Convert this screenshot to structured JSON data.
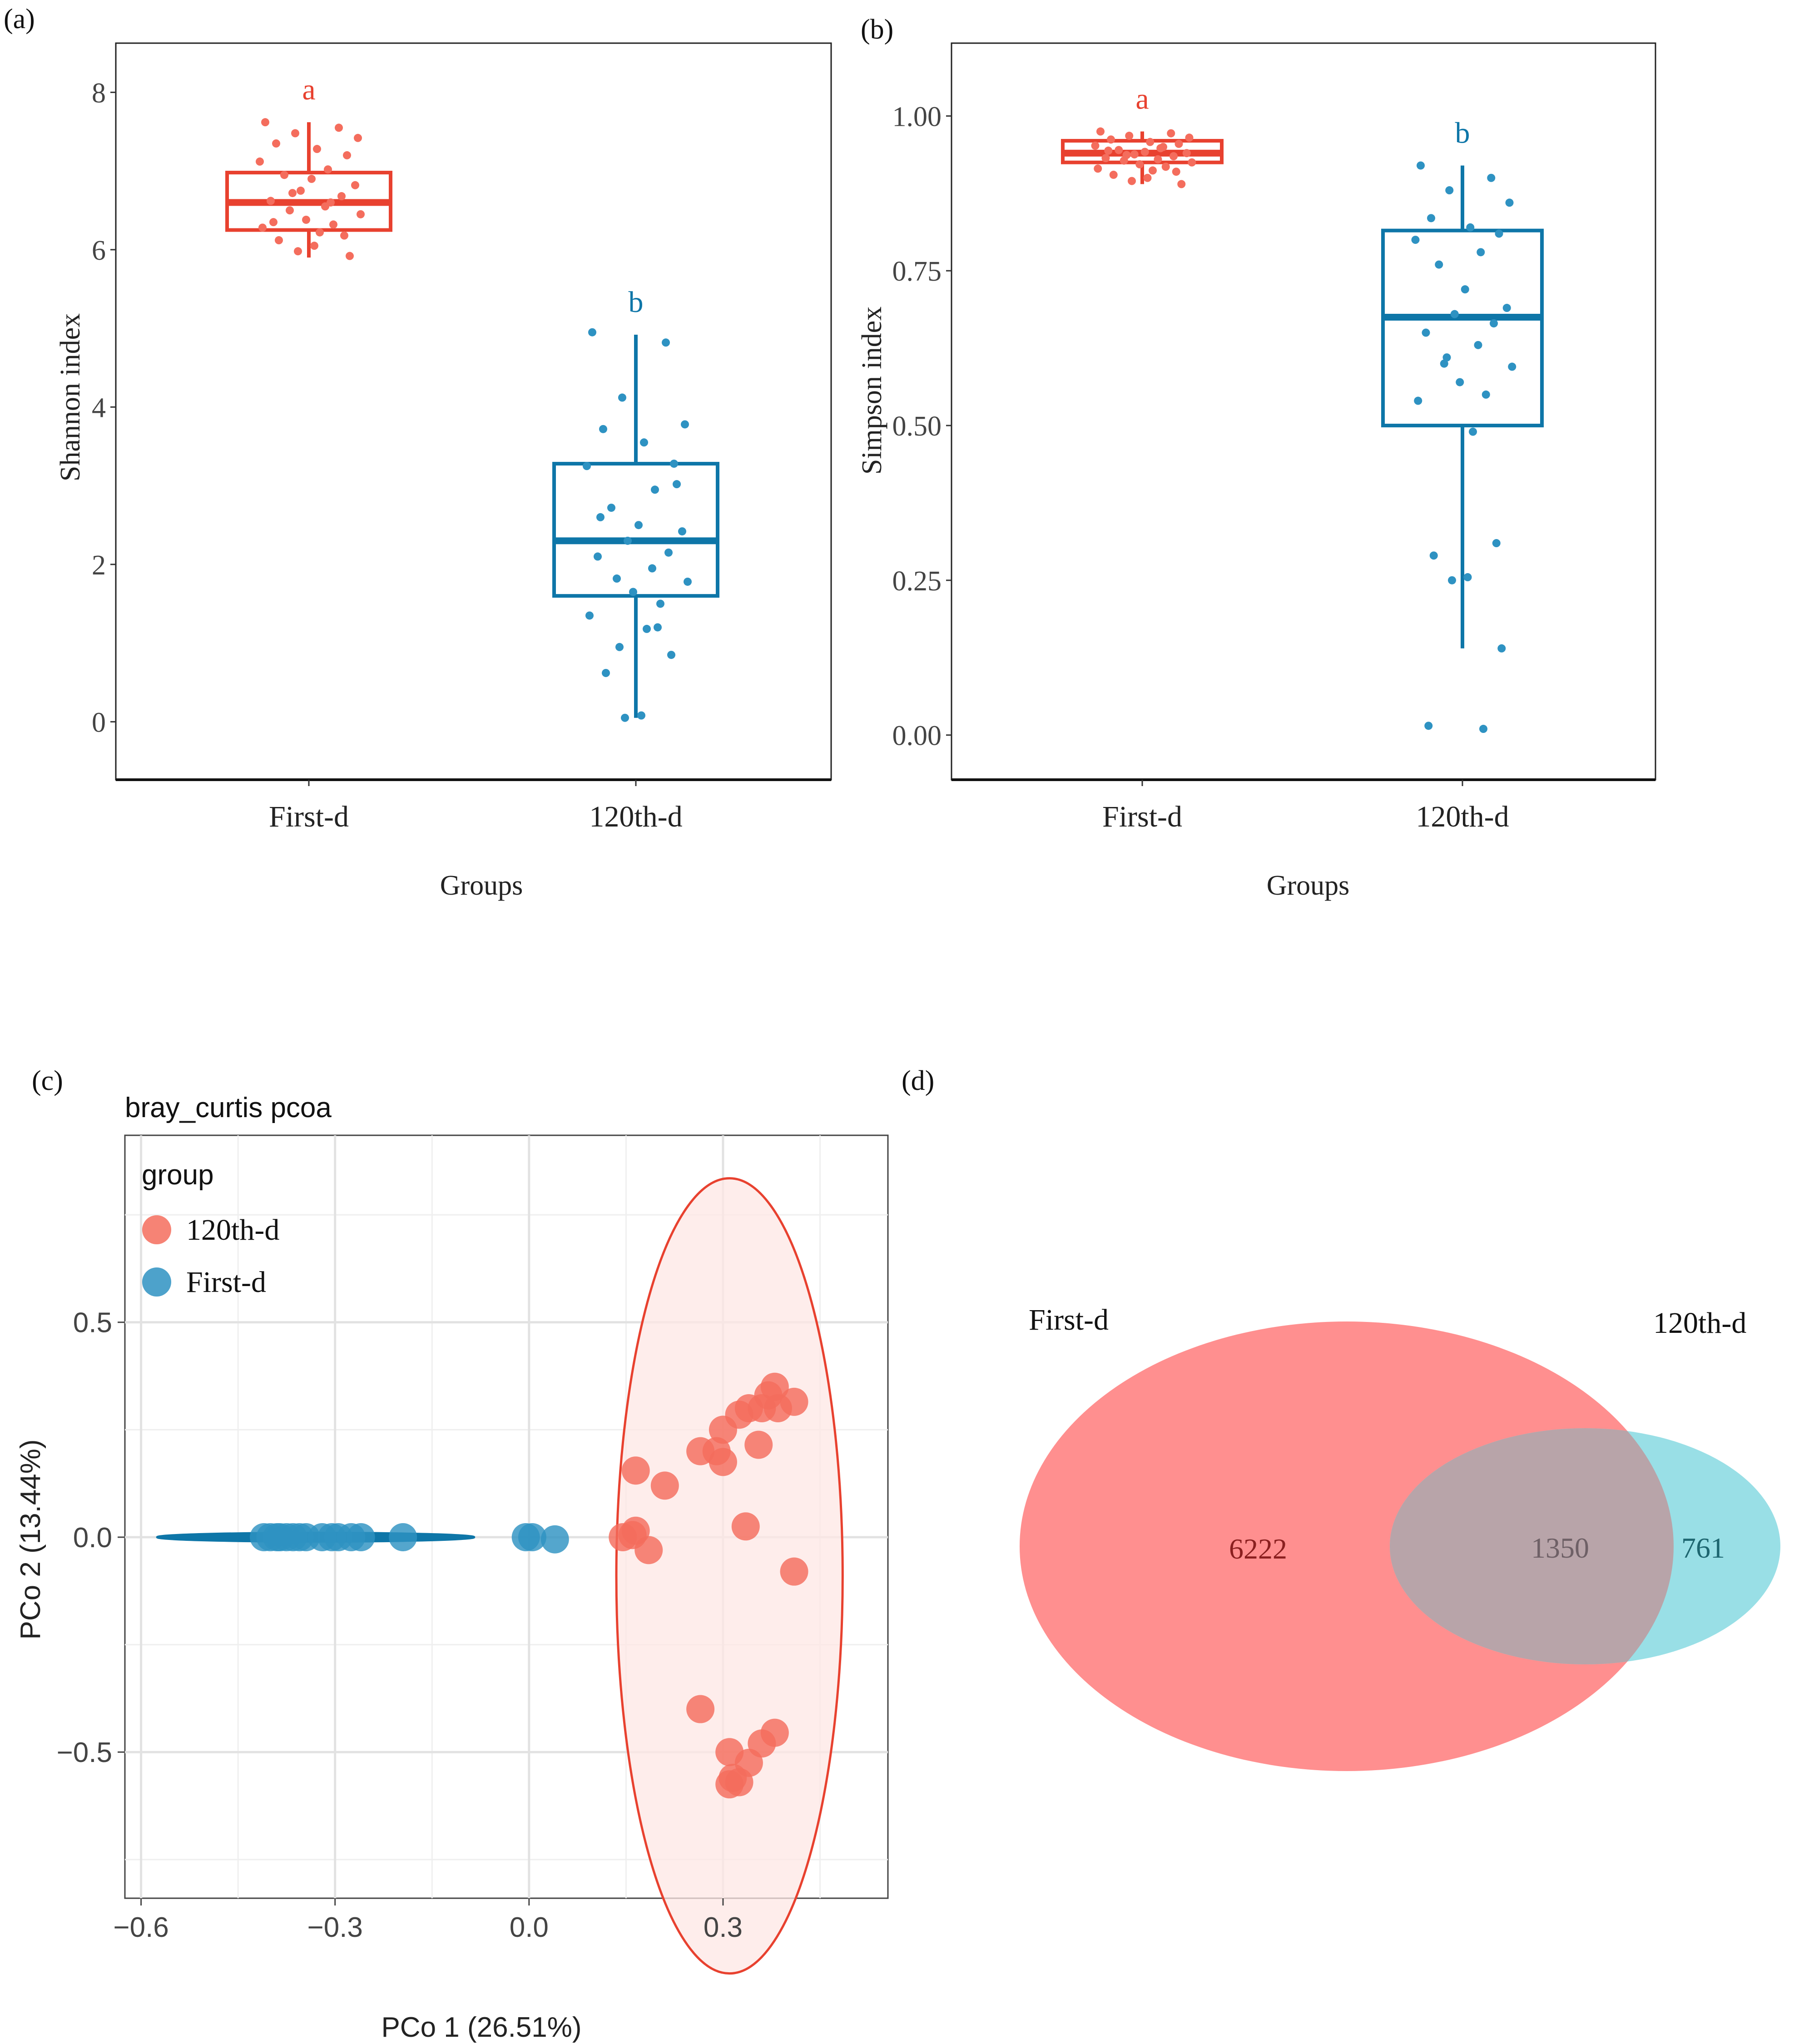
{
  "colors": {
    "red": "#E8412F",
    "red_point": "#F46D5D",
    "blue": "#0E76A8",
    "blue_point": "#2E92C2",
    "venn_red": "#FF7B7B",
    "venn_cyan": "#99DFE6",
    "venn_overlap": "#B8A4A9"
  },
  "chart_data": [
    {
      "id": "a",
      "panel_label": "(a)",
      "type": "box",
      "title": "",
      "xlabel": "Groups",
      "ylabel": "Shannon index",
      "categories": [
        "First-d",
        "120th-d"
      ],
      "ylim": [
        -0.35,
        8.25
      ],
      "yticks": [
        {
          "value": 0,
          "label": "0"
        },
        {
          "value": 2,
          "label": "2"
        },
        {
          "value": 4,
          "label": "4"
        },
        {
          "value": 6,
          "label": "6"
        },
        {
          "value": 8,
          "label": "8"
        }
      ],
      "boxes": [
        {
          "group": "First-d",
          "letter": "a",
          "whisker_low": 5.9,
          "q1": 6.25,
          "median": 6.6,
          "q3": 6.98,
          "whisker_high": 7.62,
          "points": [
            7.62,
            7.55,
            7.48,
            7.42,
            7.35,
            7.28,
            7.2,
            7.12,
            7.02,
            6.95,
            6.9,
            6.82,
            6.75,
            6.68,
            6.62,
            6.55,
            6.5,
            6.45,
            6.38,
            6.32,
            6.28,
            6.22,
            6.18,
            6.12,
            6.05,
            5.98,
            5.92,
            6.35,
            6.6,
            6.72
          ]
        },
        {
          "group": "120th-d",
          "letter": "b",
          "whisker_low": 0.05,
          "q1": 1.6,
          "median": 2.3,
          "q3": 3.28,
          "whisker_high": 4.92,
          "points": [
            4.95,
            4.82,
            4.12,
            3.78,
            3.72,
            3.55,
            3.28,
            3.25,
            2.95,
            2.72,
            2.5,
            2.42,
            2.3,
            2.15,
            2.1,
            1.95,
            1.82,
            1.78,
            1.65,
            1.5,
            1.35,
            1.18,
            0.85,
            0.62,
            0.08,
            0.05,
            3.02,
            2.6,
            1.2,
            0.95
          ]
        }
      ]
    },
    {
      "id": "b",
      "panel_label": "(b)",
      "type": "box",
      "title": "",
      "xlabel": "Groups",
      "ylabel": "Simpson index",
      "categories": [
        "First-d",
        "120th-d"
      ],
      "ylim": [
        -0.045,
        1.07
      ],
      "yticks": [
        {
          "value": 0,
          "label": "0.00"
        },
        {
          "value": 0.25,
          "label": "0.25"
        },
        {
          "value": 0.5,
          "label": "0.50"
        },
        {
          "value": 0.75,
          "label": "0.75"
        },
        {
          "value": 1.0,
          "label": "1.00"
        }
      ],
      "boxes": [
        {
          "group": "First-d",
          "letter": "a",
          "whisker_low": 0.89,
          "q1": 0.925,
          "median": 0.94,
          "q3": 0.96,
          "whisker_high": 0.975,
          "points": [
            0.975,
            0.972,
            0.968,
            0.965,
            0.962,
            0.958,
            0.955,
            0.952,
            0.948,
            0.945,
            0.942,
            0.94,
            0.938,
            0.935,
            0.932,
            0.93,
            0.928,
            0.925,
            0.922,
            0.918,
            0.915,
            0.912,
            0.91,
            0.905,
            0.9,
            0.895,
            0.89,
            0.944,
            0.95,
            0.937
          ]
        },
        {
          "group": "120th-d",
          "letter": "b",
          "whisker_low": 0.14,
          "q1": 0.5,
          "median": 0.675,
          "q3": 0.815,
          "whisker_high": 0.92,
          "points": [
            0.92,
            0.9,
            0.88,
            0.86,
            0.835,
            0.82,
            0.81,
            0.8,
            0.78,
            0.76,
            0.72,
            0.69,
            0.68,
            0.665,
            0.65,
            0.63,
            0.6,
            0.595,
            0.57,
            0.55,
            0.54,
            0.49,
            0.31,
            0.29,
            0.255,
            0.25,
            0.14,
            0.015,
            0.01,
            0.61
          ]
        }
      ]
    },
    {
      "id": "c",
      "panel_label": "(c)",
      "type": "scatter",
      "title": "bray_curtis pcoa",
      "xlabel": "PCo 1 (26.51%)",
      "ylabel": "PCo 2 (13.44%)",
      "xlim": [
        -0.625,
        0.555
      ],
      "ylim": [
        -0.84,
        0.935
      ],
      "xticks": [
        {
          "value": -0.6,
          "label": "−0.6"
        },
        {
          "value": -0.3,
          "label": "−0.3"
        },
        {
          "value": 0.0,
          "label": "0.0"
        },
        {
          "value": 0.3,
          "label": "0.3"
        }
      ],
      "yticks": [
        {
          "value": -0.5,
          "label": "−0.5"
        },
        {
          "value": 0.0,
          "label": "0.0"
        },
        {
          "value": 0.5,
          "label": "0.5"
        }
      ],
      "legend": {
        "title": "group",
        "position": "top-left",
        "entries": [
          {
            "label": "120th-d",
            "color_key": "red_point"
          },
          {
            "label": "First-d",
            "color_key": "blue_point"
          }
        ]
      },
      "series": [
        {
          "name": "120th-d",
          "color_key": "red_point",
          "points": [
            [
              0.38,
              0.35
            ],
            [
              0.37,
              0.33
            ],
            [
              0.36,
              0.3
            ],
            [
              0.385,
              0.3
            ],
            [
              0.41,
              0.315
            ],
            [
              0.34,
              0.3
            ],
            [
              0.325,
              0.285
            ],
            [
              0.3,
              0.25
            ],
            [
              0.29,
              0.2
            ],
            [
              0.355,
              0.215
            ],
            [
              0.265,
              0.2
            ],
            [
              0.3,
              0.175
            ],
            [
              0.165,
              0.155
            ],
            [
              0.21,
              0.12
            ],
            [
              0.335,
              0.025
            ],
            [
              0.165,
              0.015
            ],
            [
              0.16,
              0.005
            ],
            [
              0.145,
              0.0
            ],
            [
              0.185,
              -0.03
            ],
            [
              0.41,
              -0.08
            ],
            [
              0.265,
              -0.4
            ],
            [
              0.38,
              -0.455
            ],
            [
              0.36,
              -0.48
            ],
            [
              0.31,
              -0.5
            ],
            [
              0.34,
              -0.525
            ],
            [
              0.315,
              -0.56
            ],
            [
              0.325,
              -0.57
            ],
            [
              0.31,
              -0.575
            ]
          ]
        },
        {
          "name": "First-d",
          "color_key": "blue_point",
          "points": [
            [
              -0.41,
              0.0
            ],
            [
              -0.4,
              0.0
            ],
            [
              -0.39,
              0.0
            ],
            [
              -0.385,
              0.0
            ],
            [
              -0.375,
              0.0
            ],
            [
              -0.365,
              0.0
            ],
            [
              -0.355,
              0.0
            ],
            [
              -0.345,
              0.0
            ],
            [
              -0.32,
              0.0
            ],
            [
              -0.305,
              0.0
            ],
            [
              -0.295,
              0.0
            ],
            [
              -0.275,
              0.0
            ],
            [
              -0.26,
              0.0
            ],
            [
              -0.195,
              0.0
            ],
            [
              -0.005,
              0.0
            ],
            [
              0.005,
              0.0
            ],
            [
              0.04,
              -0.005
            ]
          ]
        }
      ],
      "ellipses": [
        {
          "group": "120th-d",
          "center": [
            0.31,
            -0.09
          ],
          "radius": [
            0.175,
            0.925
          ],
          "color_key": "red"
        },
        {
          "group": "First-d",
          "center": [
            -0.33,
            0.0
          ],
          "radius": [
            0.245,
            0.01
          ],
          "color_key": "blue"
        }
      ]
    },
    {
      "id": "d",
      "panel_label": "(d)",
      "type": "venn",
      "title": "",
      "sets": [
        {
          "name": "First-d",
          "label": "First-d",
          "unique": "6222",
          "color_key": "venn_red"
        },
        {
          "name": "120th-d",
          "label": "120th-d",
          "unique": "761",
          "color_key": "venn_cyan"
        }
      ],
      "overlap": "1350"
    }
  ]
}
